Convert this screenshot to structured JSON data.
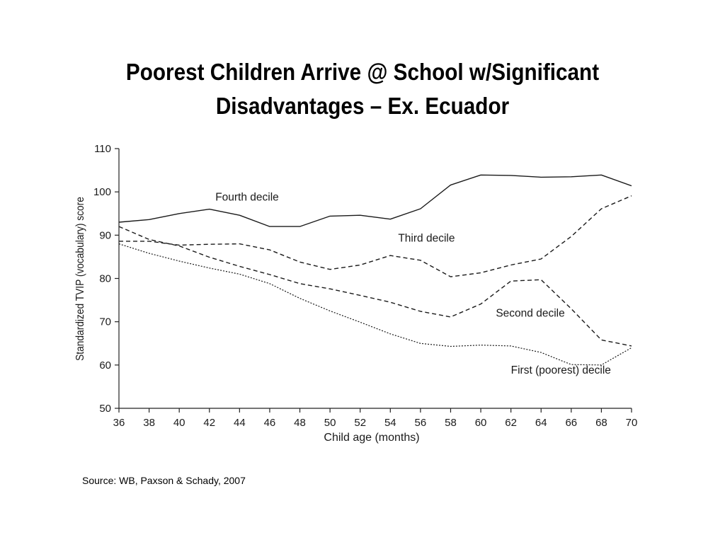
{
  "slide": {
    "title_line1": "Poorest Children Arrive @ School w/Significant",
    "title_line2": "Disadvantages – Ex. Ecuador",
    "source": "Source: WB, Paxson & Schady, 2007"
  },
  "chart_data": {
    "type": "line",
    "xlabel": "Child age (months)",
    "ylabel": "Standardized TVIP (vocabulary) score",
    "xlim": [
      36,
      70
    ],
    "ylim": [
      50,
      110
    ],
    "x_ticks": [
      36,
      38,
      40,
      42,
      44,
      46,
      48,
      50,
      52,
      54,
      56,
      58,
      60,
      62,
      64,
      66,
      68,
      70
    ],
    "y_ticks": [
      50,
      60,
      70,
      80,
      90,
      100,
      110
    ],
    "grid": false,
    "legend": "inline labels",
    "x": [
      36,
      38,
      40,
      42,
      44,
      46,
      48,
      50,
      52,
      54,
      56,
      58,
      60,
      62,
      64,
      66,
      68,
      70
    ],
    "series": [
      {
        "name": "Fourth decile",
        "style": "solid",
        "values": [
          93.0,
          93.6,
          95.0,
          96.0,
          94.6,
          92.0,
          92.0,
          94.4,
          94.6,
          93.7,
          96.1,
          101.6,
          103.9,
          103.8,
          103.4,
          103.5,
          103.9,
          101.4
        ]
      },
      {
        "name": "Third decile",
        "style": "dashed",
        "values": [
          88.6,
          88.6,
          87.7,
          87.9,
          88.0,
          86.6,
          83.8,
          82.1,
          83.1,
          85.3,
          84.2,
          80.4,
          81.3,
          83.1,
          84.5,
          89.7,
          96.1,
          99.1
        ]
      },
      {
        "name": "Second decile",
        "style": "dashed",
        "values": [
          92.0,
          89.0,
          87.5,
          84.9,
          82.8,
          80.9,
          78.8,
          77.6,
          76.1,
          74.5,
          72.4,
          71.1,
          74.1,
          79.4,
          79.7,
          73.0,
          65.8,
          64.4
        ]
      },
      {
        "name": "First (poorest) decile",
        "style": "dotted",
        "values": [
          88.0,
          85.8,
          84.0,
          82.4,
          81.0,
          78.8,
          75.4,
          72.5,
          69.9,
          67.2,
          65.0,
          64.3,
          64.6,
          64.4,
          62.9,
          60.1,
          60.0,
          64.0
        ]
      }
    ]
  }
}
